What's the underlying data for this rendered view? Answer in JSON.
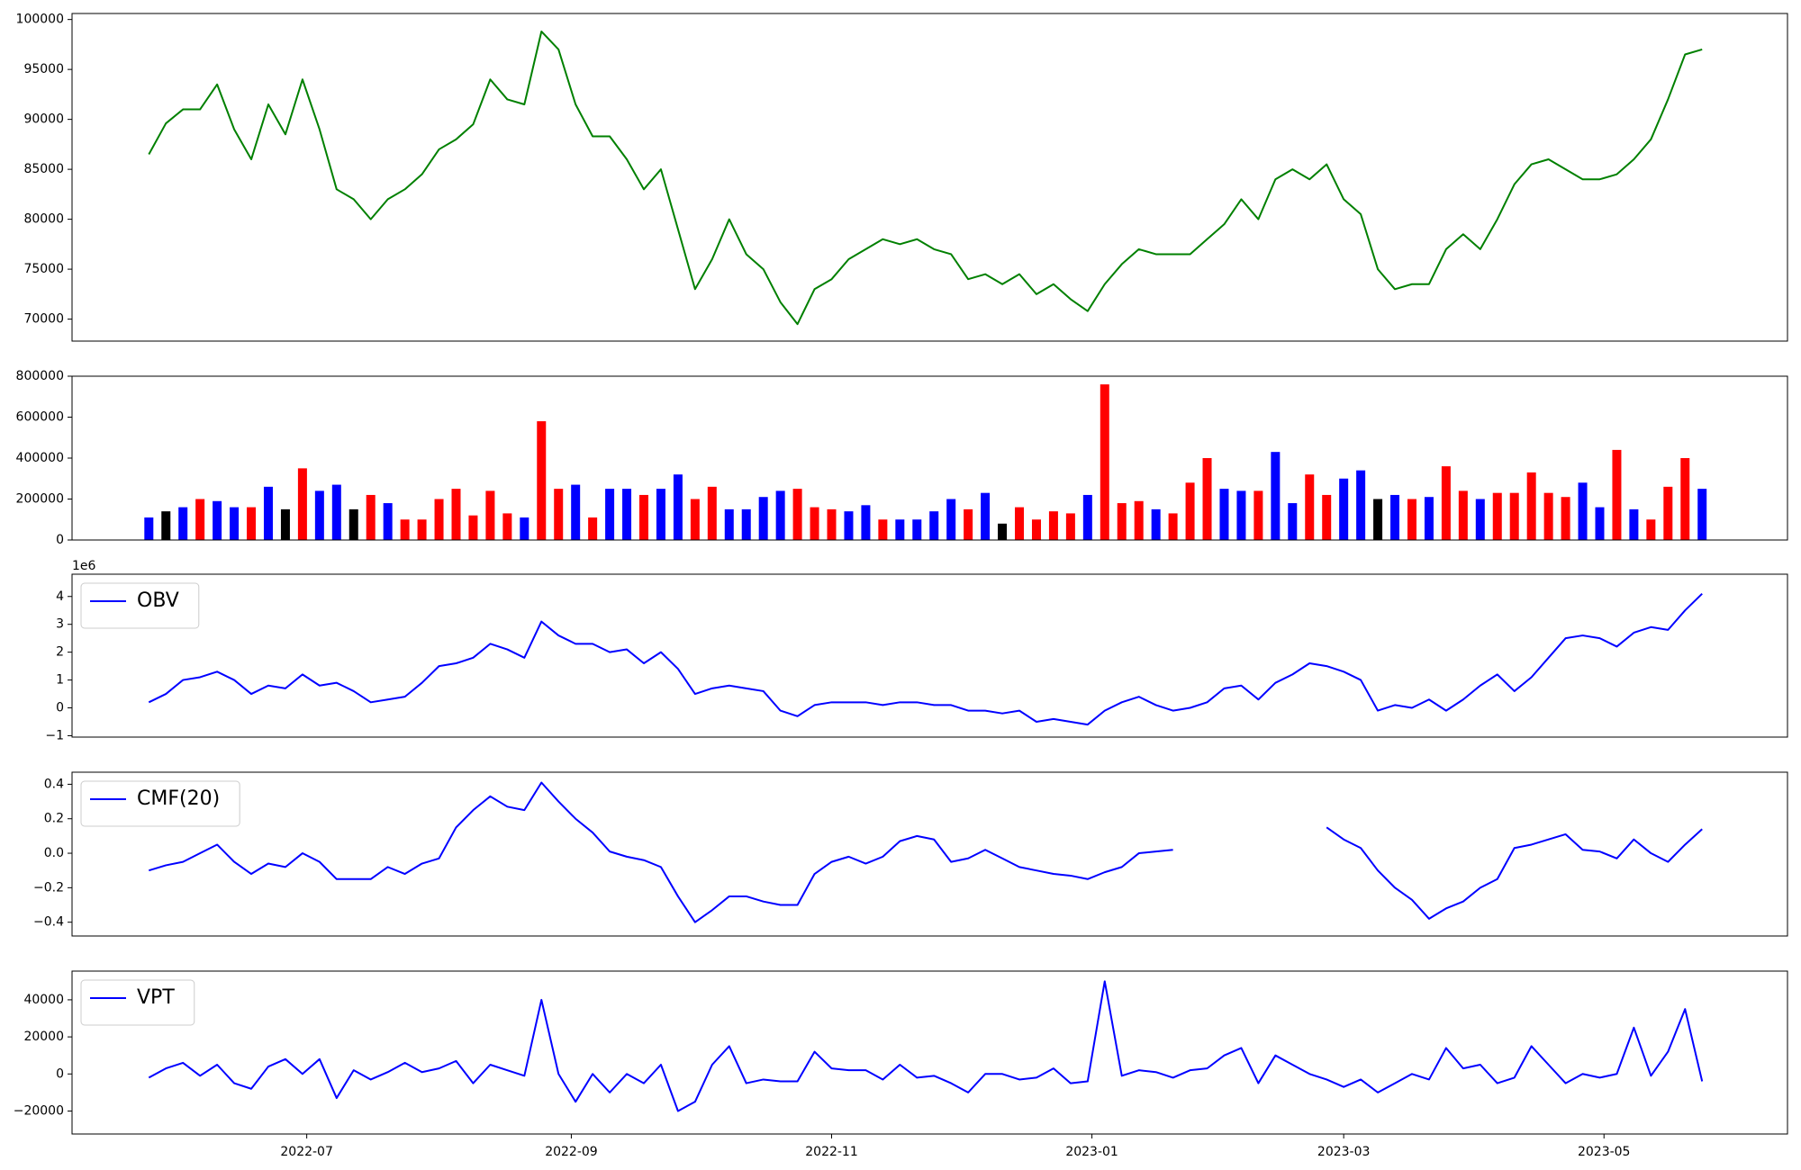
{
  "chart_data": [
    {
      "type": "line",
      "color": "#008000",
      "x": [
        24,
        28,
        32,
        36,
        40,
        44,
        48,
        52,
        56,
        60,
        64,
        68,
        72,
        76,
        80,
        84,
        88,
        92,
        96,
        100,
        104,
        108,
        112,
        116,
        120,
        124,
        128,
        132,
        136,
        140,
        144,
        148,
        152,
        156,
        160,
        164,
        168,
        172,
        176,
        180,
        184,
        188,
        192,
        196,
        200,
        204,
        208,
        212,
        216,
        220,
        224,
        228,
        232,
        236,
        240,
        244,
        248,
        252,
        256,
        260,
        264,
        268,
        272,
        276,
        280,
        284,
        288,
        292,
        296,
        300,
        304,
        308,
        312,
        316,
        320,
        324,
        328,
        332,
        336,
        340,
        344,
        348,
        352,
        356,
        360,
        364,
        368,
        372,
        376,
        380,
        384,
        388
      ],
      "values": [
        86500,
        89600,
        91000,
        91000,
        93500,
        89000,
        86000,
        91500,
        88500,
        94000,
        89000,
        83000,
        82000,
        80000,
        82000,
        83000,
        84500,
        87000,
        88000,
        89500,
        94000,
        92000,
        91500,
        98800,
        97000,
        91500,
        88300,
        88300,
        86000,
        83000,
        85000,
        79000,
        73000,
        76000,
        80000,
        76500,
        75000,
        71700,
        69500,
        73000,
        74000,
        76000,
        77000,
        78000,
        77500,
        78000,
        77000,
        76500,
        74000,
        74500,
        73500,
        74500,
        72500,
        73500,
        72000,
        70800,
        73500,
        75500,
        77000,
        76500,
        76500,
        76500,
        78000,
        79500,
        82000,
        80000,
        84000,
        85000,
        84000,
        85500,
        82000,
        80500,
        75000,
        73000,
        73500,
        73500,
        77000,
        78500,
        77000,
        80000,
        83500,
        85500,
        86000,
        85000,
        84000,
        84000,
        84500,
        86000,
        88000,
        92000,
        96500,
        97000
      ],
      "xlim": [
        6,
        408
      ],
      "ylim": [
        67800,
        100600
      ],
      "yticks": [
        70000,
        75000,
        80000,
        85000,
        90000,
        95000,
        100000
      ]
    },
    {
      "type": "bar",
      "x": [
        24,
        28,
        32,
        36,
        40,
        44,
        48,
        52,
        56,
        60,
        64,
        68,
        72,
        76,
        80,
        84,
        88,
        92,
        96,
        100,
        104,
        108,
        112,
        116,
        120,
        124,
        128,
        132,
        136,
        140,
        144,
        148,
        152,
        156,
        160,
        164,
        168,
        172,
        176,
        180,
        184,
        188,
        192,
        196,
        200,
        204,
        208,
        212,
        216,
        220,
        224,
        228,
        232,
        236,
        240,
        244,
        248,
        252,
        256,
        260,
        264,
        268,
        272,
        276,
        280,
        284,
        288,
        292,
        296,
        300,
        304,
        308,
        312,
        316,
        320,
        324,
        328,
        332,
        336,
        340,
        344,
        348,
        352,
        356,
        360,
        364,
        368,
        372,
        376,
        380,
        384,
        388
      ],
      "values": [
        110000,
        140000,
        160000,
        200000,
        190000,
        160000,
        160000,
        260000,
        150000,
        350000,
        240000,
        270000,
        150000,
        220000,
        180000,
        100000,
        100000,
        200000,
        250000,
        120000,
        240000,
        130000,
        110000,
        580000,
        250000,
        270000,
        110000,
        250000,
        250000,
        220000,
        250000,
        320000,
        200000,
        260000,
        150000,
        150000,
        210000,
        240000,
        250000,
        160000,
        150000,
        140000,
        170000,
        100000,
        100000,
        100000,
        140000,
        200000,
        150000,
        230000,
        80000,
        160000,
        100000,
        140000,
        130000,
        220000,
        760000,
        180000,
        190000,
        150000,
        130000,
        280000,
        400000,
        250000,
        240000,
        240000,
        430000,
        180000,
        320000,
        220000,
        300000,
        340000,
        200000,
        220000,
        200000,
        210000,
        360000,
        240000,
        200000,
        230000,
        230000,
        330000,
        230000,
        210000,
        280000,
        160000,
        440000,
        150000,
        100000,
        260000,
        400000,
        250000
      ],
      "colors": [
        "blue",
        "black",
        "blue",
        "red",
        "blue",
        "blue",
        "red",
        "blue",
        "black",
        "red",
        "blue",
        "blue",
        "black",
        "red",
        "blue",
        "red",
        "red",
        "red",
        "red",
        "red",
        "red",
        "red",
        "blue",
        "red",
        "red",
        "blue",
        "red",
        "blue",
        "blue",
        "red",
        "blue",
        "blue",
        "red",
        "red",
        "blue",
        "blue",
        "blue",
        "blue",
        "red",
        "red",
        "red",
        "blue",
        "blue",
        "red",
        "blue",
        "blue",
        "blue",
        "blue",
        "red",
        "blue",
        "black",
        "red",
        "red",
        "red",
        "red",
        "blue",
        "red",
        "red",
        "red",
        "blue",
        "red",
        "red",
        "red",
        "blue",
        "blue",
        "red",
        "blue",
        "blue",
        "red",
        "red",
        "blue",
        "blue",
        "black",
        "blue",
        "red",
        "blue",
        "red",
        "red",
        "blue",
        "red",
        "red",
        "red",
        "red",
        "red",
        "blue",
        "blue",
        "red",
        "blue",
        "red",
        "red",
        "red",
        "blue"
      ],
      "xlim": [
        6,
        408
      ],
      "ylim": [
        0,
        800000
      ],
      "yticks": [
        0,
        200000,
        400000,
        600000,
        800000
      ]
    },
    {
      "type": "line",
      "offset_label": "1e6",
      "legend": "upper left",
      "x": [
        24,
        28,
        32,
        36,
        40,
        44,
        48,
        52,
        56,
        60,
        64,
        68,
        72,
        76,
        80,
        84,
        88,
        92,
        96,
        100,
        104,
        108,
        112,
        116,
        120,
        124,
        128,
        132,
        136,
        140,
        144,
        148,
        152,
        156,
        160,
        164,
        168,
        172,
        176,
        180,
        184,
        188,
        192,
        196,
        200,
        204,
        208,
        212,
        216,
        220,
        224,
        228,
        232,
        236,
        240,
        244,
        248,
        252,
        256,
        260,
        264,
        268,
        272,
        276,
        280,
        284,
        288,
        292,
        296,
        300,
        304,
        308,
        312,
        316,
        320,
        324,
        328,
        332,
        336,
        340,
        344,
        348,
        352,
        356,
        360,
        364,
        368,
        372,
        376,
        380,
        384,
        388
      ],
      "series": [
        {
          "name": "OBV",
          "color": "#0000ff",
          "values": [
            0.2,
            0.5,
            1.0,
            1.1,
            1.3,
            1.0,
            0.5,
            0.8,
            0.7,
            1.2,
            0.8,
            0.9,
            0.6,
            0.2,
            0.3,
            0.4,
            0.9,
            1.5,
            1.6,
            1.8,
            2.3,
            2.1,
            1.8,
            3.1,
            2.6,
            2.3,
            2.3,
            2.0,
            2.1,
            1.6,
            2.0,
            1.4,
            0.5,
            0.7,
            0.8,
            0.7,
            0.6,
            -0.1,
            -0.3,
            0.1,
            0.2,
            0.2,
            0.2,
            0.1,
            0.2,
            0.2,
            0.1,
            0.1,
            -0.1,
            -0.1,
            -0.2,
            -0.1,
            -0.5,
            -0.4,
            -0.5,
            -0.6,
            -0.1,
            0.2,
            0.4,
            0.1,
            -0.1,
            0.0,
            0.2,
            0.7,
            0.8,
            0.3,
            0.9,
            1.2,
            1.6,
            1.5,
            1.3,
            1.0,
            -0.1,
            0.1,
            0.0,
            0.3,
            -0.1,
            0.3,
            0.8,
            1.2,
            0.6,
            1.1,
            1.8,
            2.5,
            2.6,
            2.5,
            2.2,
            2.7,
            2.9,
            2.8,
            3.5,
            4.1
          ]
        }
      ],
      "xlim": [
        6,
        408
      ],
      "ylim": [
        -1.05,
        4.8
      ],
      "yticks": [
        {
          "value": -1,
          "label": "−1"
        },
        0,
        1,
        2,
        3,
        4
      ]
    },
    {
      "type": "line",
      "legend": "upper left",
      "x": [
        24,
        28,
        32,
        36,
        40,
        44,
        48,
        52,
        56,
        60,
        64,
        68,
        72,
        76,
        80,
        84,
        88,
        92,
        96,
        100,
        104,
        108,
        112,
        116,
        120,
        124,
        128,
        132,
        136,
        140,
        144,
        148,
        152,
        156,
        160,
        164,
        168,
        172,
        176,
        180,
        184,
        188,
        192,
        196,
        200,
        204,
        208,
        212,
        216,
        220,
        224,
        228,
        232,
        236,
        240,
        244,
        248,
        252,
        256,
        260,
        264,
        268,
        272,
        276,
        280,
        284,
        288,
        292,
        296,
        300,
        304,
        308,
        312,
        316,
        320,
        324,
        328,
        332,
        336,
        340,
        344,
        348,
        352,
        356,
        360,
        364,
        368,
        372,
        376,
        380,
        384,
        388
      ],
      "series": [
        {
          "name": "CMF(20)",
          "color": "#0000ff",
          "values": [
            -0.1,
            -0.07,
            -0.05,
            0,
            0.05,
            -0.05,
            -0.12,
            -0.06,
            -0.08,
            0,
            -0.05,
            -0.15,
            -0.15,
            -0.15,
            -0.08,
            -0.12,
            -0.06,
            -0.03,
            0.15,
            0.25,
            0.33,
            0.27,
            0.25,
            0.41,
            0.3,
            0.2,
            0.12,
            0.01,
            -0.02,
            -0.04,
            -0.08,
            -0.25,
            -0.4,
            -0.33,
            -0.25,
            -0.25,
            -0.28,
            -0.3,
            -0.3,
            -0.12,
            -0.05,
            -0.02,
            -0.06,
            -0.02,
            0.07,
            0.1,
            0.08,
            -0.05,
            -0.03,
            0.02,
            -0.03,
            -0.08,
            -0.1,
            -0.12,
            -0.13,
            -0.15,
            -0.11,
            -0.08,
            0,
            0.01,
            0.02,
            null,
            null,
            null,
            null,
            null,
            null,
            null,
            null,
            0.15,
            0.08,
            0.03,
            -0.1,
            -0.2,
            -0.27,
            -0.38,
            -0.32,
            -0.28,
            -0.2,
            -0.15,
            0.03,
            0.05,
            0.08,
            0.11,
            0.02,
            0.01,
            -0.03,
            0.08,
            0,
            -0.05,
            0.05,
            0.14
          ]
        }
      ],
      "xlim": [
        6,
        408
      ],
      "ylim": [
        -0.48,
        0.47
      ],
      "yticks": [
        {
          "value": -0.4,
          "label": "−0.4"
        },
        {
          "value": -0.2,
          "label": "−0.2"
        },
        {
          "value": 0,
          "label": "0.0"
        },
        0.2,
        0.4
      ]
    },
    {
      "type": "line",
      "legend": "upper left",
      "x": [
        24,
        28,
        32,
        36,
        40,
        44,
        48,
        52,
        56,
        60,
        64,
        68,
        72,
        76,
        80,
        84,
        88,
        92,
        96,
        100,
        104,
        108,
        112,
        116,
        120,
        124,
        128,
        132,
        136,
        140,
        144,
        148,
        152,
        156,
        160,
        164,
        168,
        172,
        176,
        180,
        184,
        188,
        192,
        196,
        200,
        204,
        208,
        212,
        216,
        220,
        224,
        228,
        232,
        236,
        240,
        244,
        248,
        252,
        256,
        260,
        264,
        268,
        272,
        276,
        280,
        284,
        288,
        292,
        296,
        300,
        304,
        308,
        312,
        316,
        320,
        324,
        328,
        332,
        336,
        340,
        344,
        348,
        352,
        356,
        360,
        364,
        368,
        372,
        376,
        380,
        384,
        388
      ],
      "series": [
        {
          "name": "VPT",
          "color": "#0000ff",
          "values": [
            -2000,
            3000,
            6000,
            -1000,
            5000,
            -5000,
            -8000,
            4000,
            8000,
            0,
            8000,
            -13000,
            2000,
            -3000,
            1000,
            6000,
            1000,
            3000,
            7000,
            -5000,
            5000,
            2000,
            -1000,
            40000,
            0,
            -15000,
            0,
            -10000,
            0,
            -5000,
            5000,
            -20000,
            -15000,
            5000,
            15000,
            -5000,
            -3000,
            -4000,
            -4000,
            12000,
            3000,
            2000,
            2000,
            -3000,
            5000,
            -2000,
            -1000,
            -5000,
            -10000,
            0,
            0,
            -3000,
            -2000,
            3000,
            -5000,
            -4000,
            50000,
            -1000,
            2000,
            1000,
            -2000,
            2000,
            3000,
            10000,
            14000,
            -5000,
            10000,
            5000,
            0,
            -3000,
            -7000,
            -3000,
            -10000,
            -5000,
            0,
            -3000,
            14000,
            3000,
            5000,
            -5000,
            -2000,
            15000,
            5000,
            -5000,
            0,
            -2000,
            0,
            25000,
            -1000,
            12000,
            35000,
            -4000
          ]
        }
      ],
      "xlim": [
        6,
        408
      ],
      "ylim": [
        -32400,
        55500
      ],
      "yticks": [
        {
          "value": -20000,
          "label": "−20000"
        },
        0,
        20000,
        40000
      ],
      "xticks": [
        {
          "value": 61,
          "label": "2022-07"
        },
        {
          "value": 123,
          "label": "2022-09"
        },
        {
          "value": 184,
          "label": "2022-11"
        },
        {
          "value": 245,
          "label": "2023-01"
        },
        {
          "value": 304,
          "label": "2023-03"
        },
        {
          "value": 365,
          "label": "2023-05"
        }
      ]
    }
  ]
}
